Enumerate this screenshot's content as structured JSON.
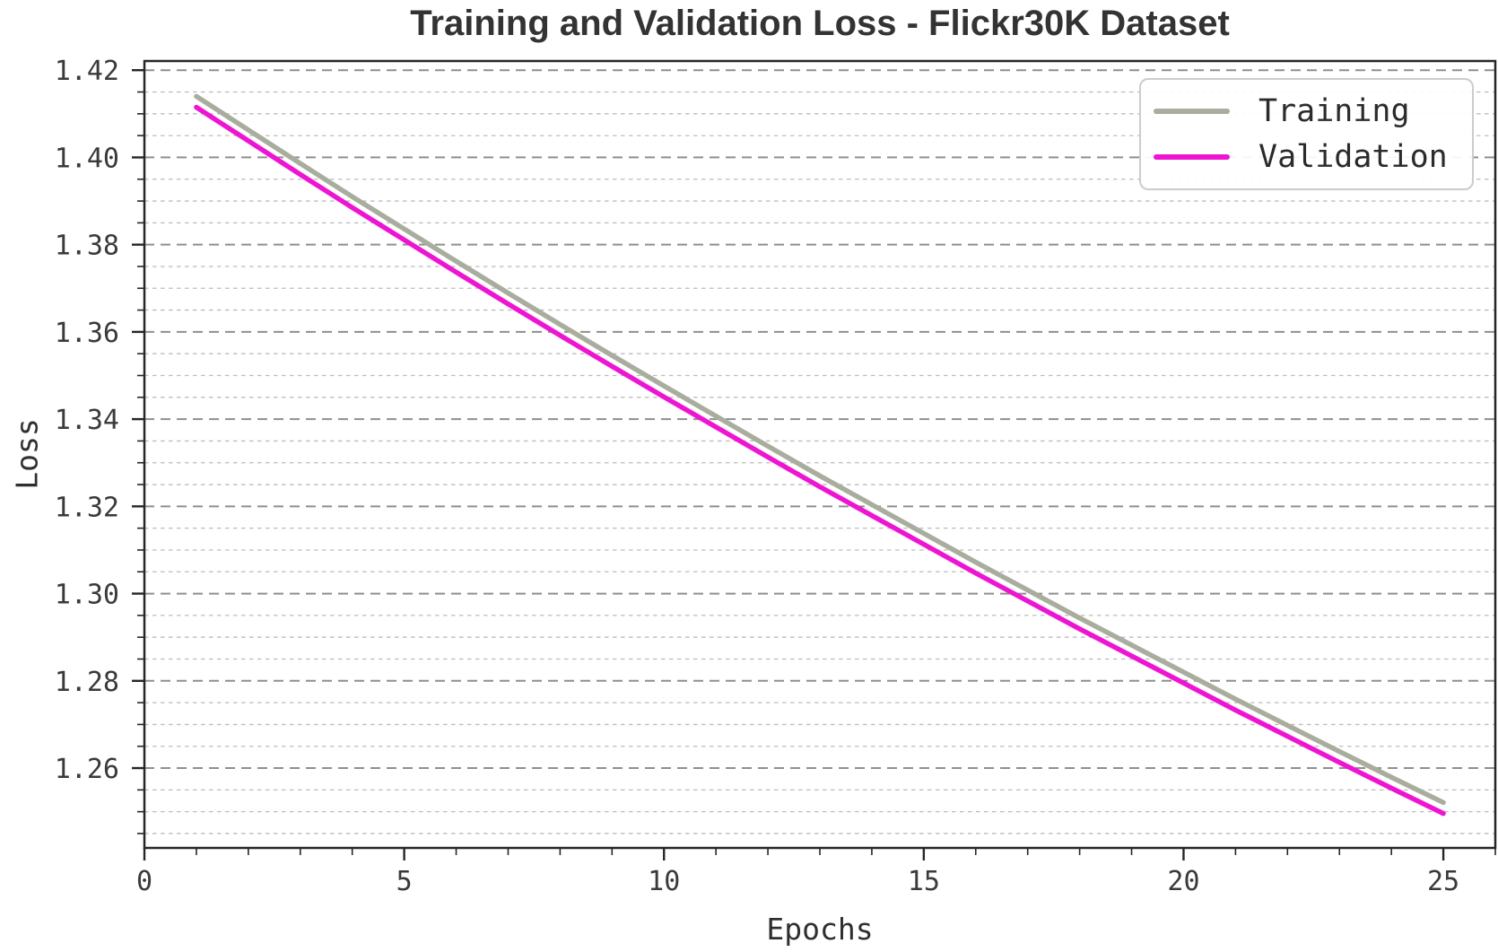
{
  "chart_data": {
    "type": "line",
    "title": "Training and Validation Loss - Flickr30K Dataset",
    "xlabel": "Epochs",
    "ylabel": "Loss",
    "x": [
      1,
      2,
      3,
      4,
      5,
      6,
      7,
      8,
      9,
      10,
      11,
      12,
      13,
      14,
      15,
      16,
      17,
      18,
      19,
      20,
      21,
      22,
      23,
      24,
      25
    ],
    "series": [
      {
        "name": "Training",
        "color": "#a9ad9e",
        "values": [
          1.414,
          1.4063,
          1.3986,
          1.391,
          1.3836,
          1.3762,
          1.3689,
          1.3617,
          1.3546,
          1.3476,
          1.3407,
          1.3338,
          1.327,
          1.3204,
          1.3138,
          1.3072,
          1.3008,
          1.2944,
          1.2882,
          1.282,
          1.2758,
          1.2698,
          1.2638,
          1.2579,
          1.2521
        ]
      },
      {
        "name": "Validation",
        "color": "#ee15d2",
        "values": [
          1.4115,
          1.4038,
          1.3961,
          1.3885,
          1.3811,
          1.3737,
          1.3664,
          1.3592,
          1.3521,
          1.3451,
          1.3382,
          1.3313,
          1.3245,
          1.3179,
          1.3113,
          1.3047,
          1.2983,
          1.2919,
          1.2857,
          1.2795,
          1.2733,
          1.2673,
          1.2613,
          1.2554,
          1.2496
        ]
      }
    ],
    "xlim": [
      0,
      26
    ],
    "ylim": [
      1.2417,
      1.4221
    ],
    "xticks": [
      0,
      5,
      10,
      15,
      20,
      25
    ],
    "xtick_labels": [
      "0",
      "5",
      "10",
      "15",
      "20",
      "25"
    ],
    "yticks": [
      1.26,
      1.28,
      1.3,
      1.32,
      1.34,
      1.36,
      1.38,
      1.4,
      1.42
    ],
    "ytick_labels": [
      "1.26",
      "1.28",
      "1.30",
      "1.32",
      "1.34",
      "1.36",
      "1.38",
      "1.40",
      "1.42"
    ],
    "x_minor_step": 1,
    "y_minor_step": 0.005,
    "grid": {
      "horizontal_major": true,
      "horizontal_minor": true,
      "vertical": false,
      "style": "dashed"
    },
    "legend_position": "upper-right",
    "colors": {
      "axis": "#262626",
      "grid_major": "#8f8f8f",
      "grid_minor": "#bcbcbc",
      "tick_text": "#3a3a3a",
      "title_text": "#333333"
    }
  }
}
